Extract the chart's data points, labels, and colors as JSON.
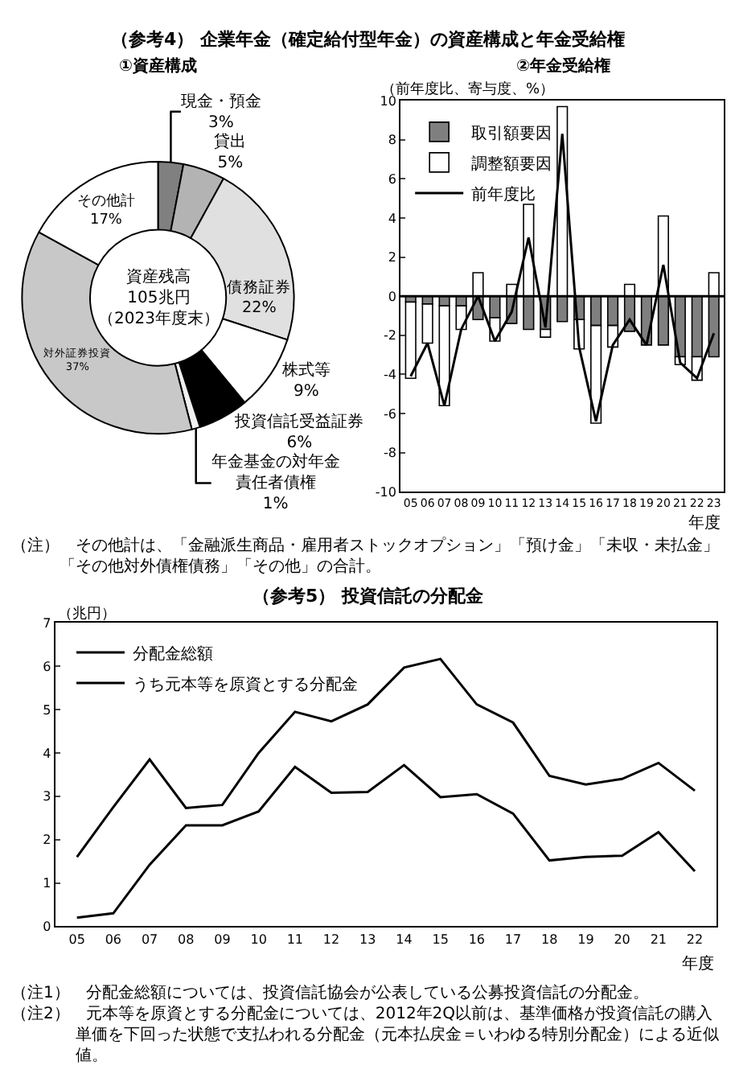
{
  "chart_data": [
    {
      "type": "donut",
      "title": "（参考4） 企業年金（確定給付型年金）の資産構成と年金受給権",
      "subtitle": "①資産構成",
      "categories": [
        "現金・預金",
        "貸出",
        "債務証券",
        "株式等",
        "投資信託受益証券",
        "年金基金の対年金責任者債権",
        "対外証券投資",
        "その他計"
      ],
      "values": [
        3,
        5,
        22,
        9,
        6,
        1,
        37,
        17
      ],
      "value_labels": [
        "3%",
        "5%",
        "22%",
        "9%",
        "6%",
        "1%",
        "37%",
        "17%"
      ],
      "colors": [
        "#808080",
        "#b3b3b3",
        "#e0e0e0",
        "#ffffff",
        "#000000",
        "#f0f0f0",
        "#c8c8c8",
        "#ffffff"
      ],
      "legend": false,
      "annotations": [
        "資産残高105兆円（2023年度末）",
        "（注）　その他計は、「金融派生商品・雇用者ストックオプション」「預け金」「未収・未払金」「その他対外債権債務」「その他」の合計。"
      ]
    },
    {
      "type": "bar",
      "title": "②年金受給権",
      "ylabel": "（前年度比、寄与度、%）",
      "xlabel": "年度",
      "categories": [
        "05",
        "06",
        "07",
        "08",
        "09",
        "10",
        "11",
        "12",
        "13",
        "14",
        "15",
        "16",
        "17",
        "18",
        "19",
        "20",
        "21",
        "22",
        "23"
      ],
      "stacked": true,
      "series": [
        {
          "name": "取引額要因",
          "color": "#7f7f7f",
          "values": [
            -0.3,
            -0.4,
            -0.5,
            -0.5,
            -1.2,
            -1.1,
            -1.4,
            -1.7,
            -1.7,
            -1.3,
            -1.2,
            -1.5,
            -1.5,
            -1.8,
            -2.5,
            -2.5,
            -3.1,
            -3.1,
            -3.1
          ]
        },
        {
          "name": "調整額要因",
          "color": "#ffffff",
          "values": [
            -3.9,
            -2.0,
            -5.1,
            -1.2,
            1.2,
            -1.2,
            0.6,
            4.7,
            -0.4,
            9.7,
            -1.5,
            -5.0,
            -1.1,
            0.6,
            null,
            4.1,
            -0.4,
            -1.2,
            1.2
          ]
        },
        {
          "name": "前年度比",
          "type": "line",
          "color": "#000000",
          "values": [
            -4.1,
            -2.4,
            -5.6,
            -1.7,
            0.0,
            -2.3,
            -0.8,
            3.0,
            -1.6,
            8.3,
            -2.6,
            -6.4,
            -2.5,
            -1.2,
            -2.5,
            1.6,
            -3.4,
            -4.2,
            -1.9
          ]
        }
      ],
      "ylim": [
        -10,
        10
      ],
      "yticks": [
        -10,
        -8,
        -6,
        -4,
        -2,
        0,
        2,
        4,
        6,
        8,
        10
      ],
      "ref_lines": [
        {
          "axis": "y",
          "value": 0,
          "color": "#000000"
        }
      ],
      "grid": false,
      "legend": "top left",
      "marker": "none"
    },
    {
      "type": "line",
      "title": "（参考5） 投資信託の分配金",
      "ylabel": "（兆円）",
      "xlabel": "年度",
      "categories": [
        "05",
        "06",
        "07",
        "08",
        "09",
        "10",
        "11",
        "12",
        "13",
        "14",
        "15",
        "16",
        "17",
        "18",
        "19",
        "20",
        "21",
        "22"
      ],
      "series": [
        {
          "name": "分配金総額",
          "color": "#000000",
          "values": [
            1.6,
            2.75,
            3.85,
            2.73,
            2.8,
            4.0,
            4.95,
            4.73,
            5.12,
            5.97,
            6.17,
            5.12,
            4.7,
            3.47,
            3.27,
            3.4,
            3.77,
            3.13
          ]
        },
        {
          "name": "うち元本等を原資とする分配金",
          "color": "#000000",
          "values": [
            0.2,
            0.3,
            1.42,
            2.33,
            2.33,
            2.65,
            3.68,
            3.08,
            3.1,
            3.72,
            2.98,
            3.05,
            2.6,
            1.52,
            1.6,
            1.63,
            2.17,
            1.27
          ]
        }
      ],
      "ylim": [
        0,
        7
      ],
      "yticks": [
        0,
        1,
        2,
        3,
        4,
        5,
        6,
        7
      ],
      "grid": false,
      "legend": "top left",
      "marker": "none",
      "annotations": [
        "（注1）　分配金総額については、投資信託協会が公表している公募投資信託の分配金。",
        "（注2）　元本等を原資とする分配金については、2012年2Q以前は、基準価格が投資信託の購入単価を下回った状態で支払われる分配金（元本払戻金＝いわゆる特別分配金）による近似値。"
      ]
    }
  ]
}
